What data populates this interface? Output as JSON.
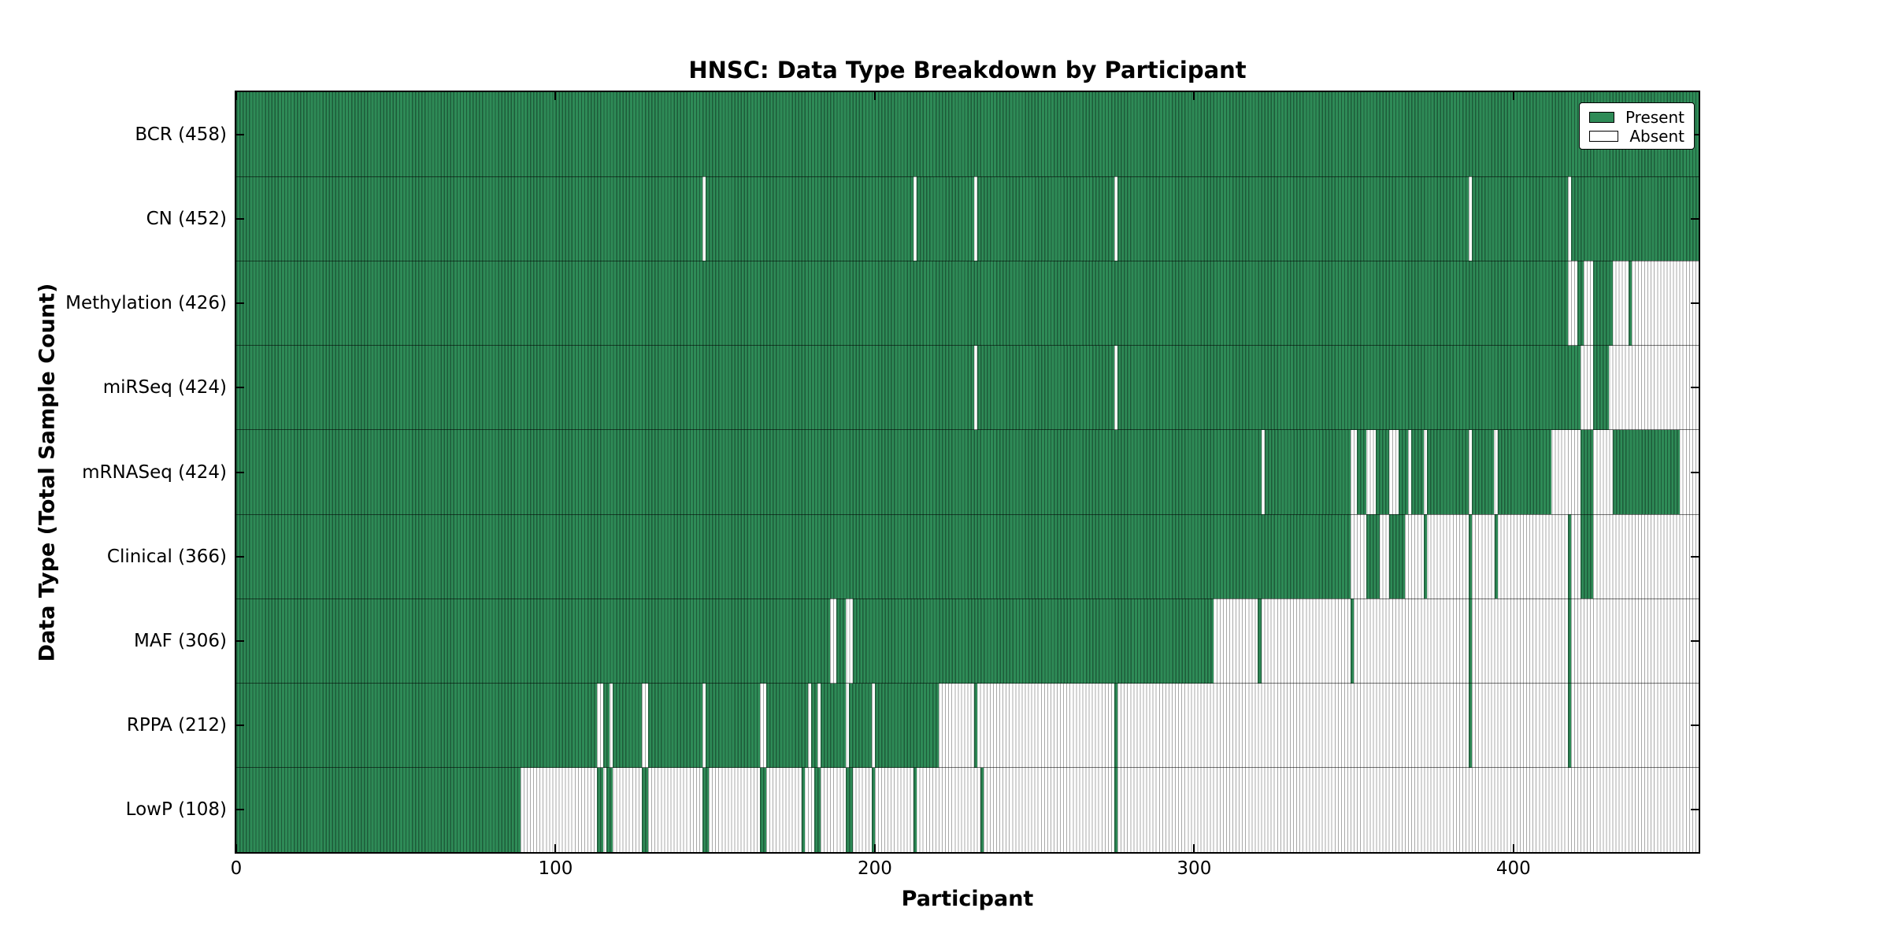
{
  "chart_data": {
    "type": "heatmap",
    "title": "HNSC: Data Type Breakdown by Participant",
    "xlabel": "Participant",
    "ylabel": "Data Type (Total Sample Count)",
    "x_ticks": [
      0,
      100,
      200,
      300,
      400
    ],
    "x_range": [
      0,
      458
    ],
    "n_participants": 458,
    "legend": {
      "present": "Present",
      "absent": "Absent",
      "position": "upper right"
    },
    "colors": {
      "present_fill": "#2e8b57",
      "present_edge": "#1d5b39",
      "absent_fill": "#ffffff",
      "absent_edge": "#a8a8a8",
      "axis": "#000000"
    },
    "rows": [
      {
        "label": "BCR",
        "total": 458,
        "tick_label": "BCR (458)",
        "present": [
          [
            0,
            458
          ]
        ]
      },
      {
        "label": "CN",
        "total": 452,
        "tick_label": "CN (452)",
        "present": [
          [
            0,
            146
          ],
          [
            147,
            212
          ],
          [
            213,
            231
          ],
          [
            232,
            275
          ],
          [
            276,
            386
          ],
          [
            387,
            417
          ],
          [
            418,
            458
          ]
        ]
      },
      {
        "label": "Methylation",
        "total": 426,
        "tick_label": "Methylation (426)",
        "present": [
          [
            0,
            417
          ],
          [
            420,
            422
          ],
          [
            425,
            431
          ],
          [
            436,
            437
          ]
        ]
      },
      {
        "label": "miRSeq",
        "total": 424,
        "tick_label": "miRSeq (424)",
        "present": [
          [
            0,
            231
          ],
          [
            232,
            275
          ],
          [
            276,
            421
          ],
          [
            425,
            430
          ]
        ]
      },
      {
        "label": "mRNASeq",
        "total": 424,
        "tick_label": "mRNASeq (424)",
        "present": [
          [
            0,
            321
          ],
          [
            322,
            349
          ],
          [
            351,
            354
          ],
          [
            357,
            361
          ],
          [
            364,
            367
          ],
          [
            368,
            372
          ],
          [
            373,
            386
          ],
          [
            387,
            394
          ],
          [
            395,
            412
          ],
          [
            421,
            425
          ],
          [
            431,
            452
          ]
        ]
      },
      {
        "label": "Clinical",
        "total": 366,
        "tick_label": "Clinical (366)",
        "present": [
          [
            0,
            349
          ],
          [
            354,
            358
          ],
          [
            361,
            366
          ],
          [
            372,
            373
          ],
          [
            386,
            387
          ],
          [
            394,
            395
          ],
          [
            417,
            418
          ],
          [
            421,
            425
          ]
        ]
      },
      {
        "label": "MAF",
        "total": 306,
        "tick_label": "MAF (306)",
        "present": [
          [
            0,
            186
          ],
          [
            188,
            191
          ],
          [
            193,
            306
          ],
          [
            320,
            321
          ],
          [
            349,
            350
          ],
          [
            386,
            387
          ],
          [
            417,
            418
          ]
        ]
      },
      {
        "label": "RPPA",
        "total": 212,
        "tick_label": "RPPA (212)",
        "present": [
          [
            0,
            113
          ],
          [
            115,
            117
          ],
          [
            118,
            127
          ],
          [
            129,
            146
          ],
          [
            147,
            164
          ],
          [
            166,
            179
          ],
          [
            180,
            182
          ],
          [
            183,
            191
          ],
          [
            192,
            199
          ],
          [
            200,
            220
          ],
          [
            231,
            232
          ],
          [
            275,
            276
          ],
          [
            386,
            387
          ],
          [
            417,
            418
          ]
        ]
      },
      {
        "label": "LowP",
        "total": 108,
        "tick_label": "LowP (108)",
        "present": [
          [
            0,
            89
          ],
          [
            113,
            115
          ],
          [
            116,
            118
          ],
          [
            127,
            129
          ],
          [
            146,
            148
          ],
          [
            164,
            166
          ],
          [
            177,
            178
          ],
          [
            181,
            183
          ],
          [
            191,
            193
          ],
          [
            199,
            200
          ],
          [
            212,
            213
          ],
          [
            233,
            234
          ],
          [
            275,
            276
          ]
        ]
      }
    ]
  }
}
